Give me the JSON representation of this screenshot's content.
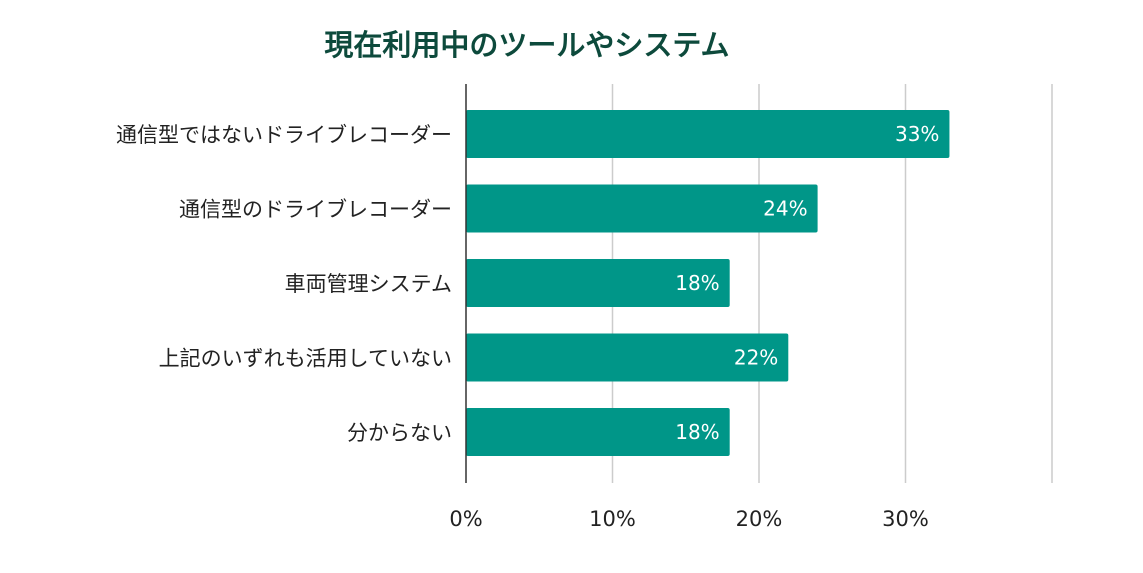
{
  "chart_data": {
    "type": "bar",
    "orientation": "horizontal",
    "title": "現在利用中のツールやシステム",
    "categories": [
      "通信型ではないドライブレコーダー",
      "通信型のドライブレコーダー",
      "車両管理システム",
      "上記のいずれも活用していない",
      "分からない"
    ],
    "values": [
      33,
      24,
      18,
      22,
      18
    ],
    "value_labels": [
      "33%",
      "24%",
      "18%",
      "22%",
      "18%"
    ],
    "xlabel": "",
    "ylabel": "",
    "xlim": [
      0,
      40
    ],
    "ticks": [
      0,
      10,
      20,
      30
    ],
    "tick_labels": [
      "0%",
      "10%",
      "20%",
      "30%"
    ],
    "grid": true,
    "legend": "none",
    "colors": {
      "bar": "#009688",
      "title": "#0d4a3c",
      "grid": "#cccccc",
      "axis": "#333333"
    }
  }
}
